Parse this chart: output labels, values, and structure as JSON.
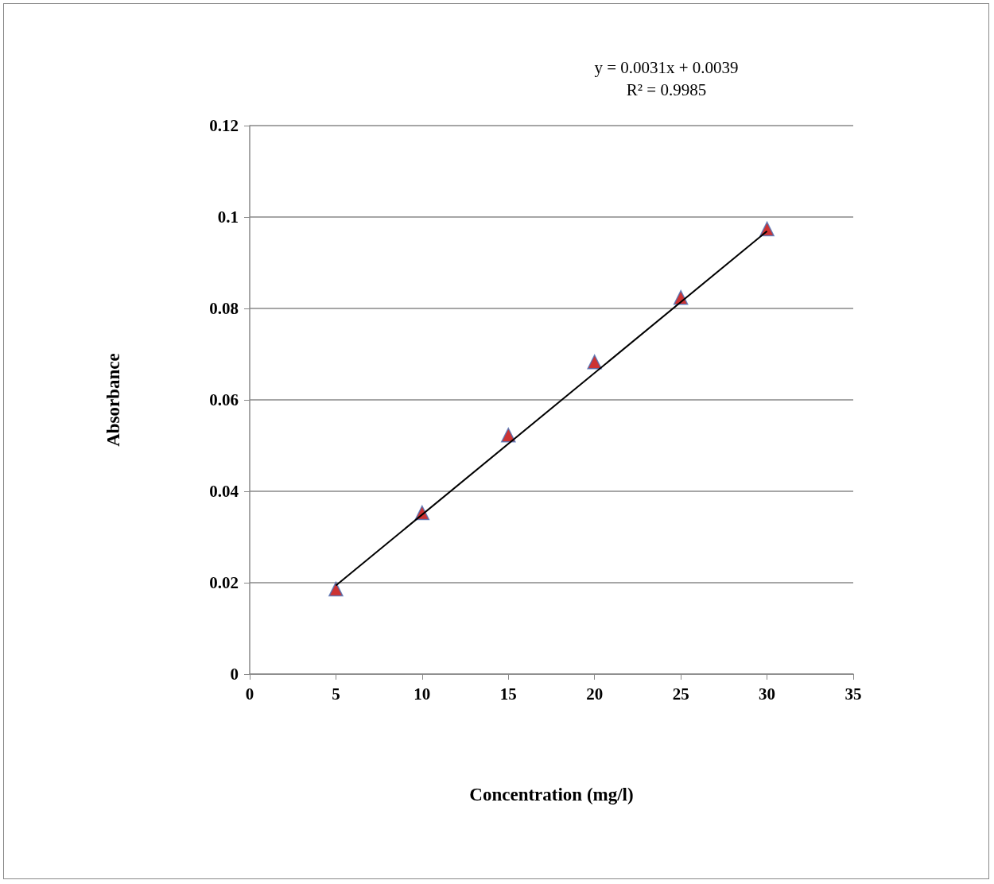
{
  "chart_data": {
    "type": "scatter",
    "xlabel": "Concentration (mg/l)",
    "ylabel": "Absorbance",
    "annotations": [
      "y = 0.0031x + 0.0039",
      "R² = 0.9985"
    ],
    "series": [
      {
        "color": "#c00000",
        "marker": "triangle",
        "x": [
          5,
          10,
          15,
          20,
          25,
          30
        ],
        "values": [
          0.0186,
          0.0353,
          0.0523,
          0.0683,
          0.0824,
          0.0974
        ]
      },
      {
        "type": "line",
        "color": "#000000",
        "marker": "none",
        "x": [
          5,
          30
        ],
        "values": [
          0.0194,
          0.0969
        ]
      }
    ],
    "xlim": [
      0,
      35
    ],
    "xticks": [
      0,
      5,
      10,
      15,
      20,
      25,
      30,
      35
    ],
    "ylim": [
      0,
      0.12
    ],
    "yticks": [
      0,
      0.02,
      0.04,
      0.06,
      0.08,
      0.1,
      0.12
    ],
    "grid": "y"
  }
}
